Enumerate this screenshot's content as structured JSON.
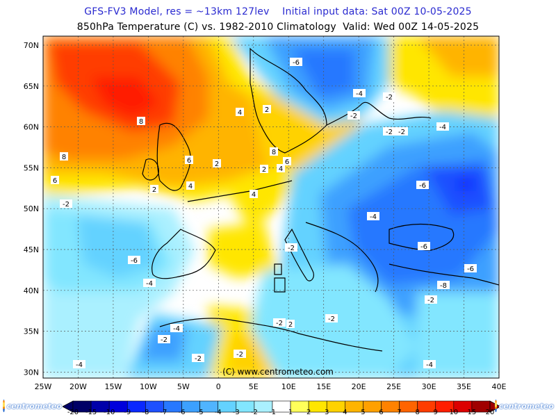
{
  "header": {
    "title_line1": "GFS-FV3 Model, res = ~13km 127lev    Initial input data: Sat 00Z 10-05-2025",
    "title_line2": "850hPa Temperature (C) vs. 1982-2010 Climatology  Valid: Wed 00Z 14-05-2025"
  },
  "map": {
    "lon_labels": [
      "25W",
      "20W",
      "15W",
      "10W",
      "5W",
      "0",
      "5E",
      "10E",
      "15E",
      "20E",
      "25E",
      "30E",
      "35E",
      "40E"
    ],
    "lat_labels": [
      "70N",
      "65N",
      "60N",
      "55N",
      "50N",
      "45N",
      "40N",
      "35N",
      "30N"
    ],
    "credit": "(C) www.centrometeo.com",
    "contour_labels": [
      "-6",
      "-4",
      "-2",
      "-2",
      "-4",
      "8",
      "8",
      "6",
      "4",
      "2",
      "8",
      "6",
      "4",
      "6",
      "4",
      "2",
      "-2",
      "-2",
      "-4",
      "-6",
      "-6",
      "-6",
      "-8",
      "-4",
      "-2",
      "-2",
      "-4",
      "-2",
      "-2",
      "-4",
      "-6",
      "-4",
      "-2",
      "2",
      "-2",
      "-2",
      "2",
      "4",
      "2",
      "-2"
    ],
    "colors": {
      "cold_extreme": "#000066",
      "cold_deep": "#1e3cff",
      "cold_mid": "#3ca0ff",
      "cold_light": "#64d2ff",
      "cold_pale": "#aaf0ff",
      "neutral": "#ffffff",
      "warm_light": "#ffe600",
      "warm_mid": "#ffb400",
      "warm_orange": "#ff8200",
      "warm_red": "#ff3c00",
      "warm_deep": "#dc0000"
    }
  },
  "colorbar": {
    "ticks": [
      "-20",
      "-15",
      "-10",
      "-9",
      "-8",
      "-7",
      "-6",
      "-5",
      "-4",
      "-3",
      "-2",
      "-1",
      "1",
      "2",
      "3",
      "4",
      "5",
      "6",
      "7",
      "8",
      "9",
      "10",
      "15",
      "20"
    ],
    "colors": [
      "#000066",
      "#0000aa",
      "#0000dc",
      "#0a28ff",
      "#1e50ff",
      "#2878ff",
      "#3ca0ff",
      "#50b4ff",
      "#64d2ff",
      "#82e6ff",
      "#aaf0ff",
      "#ffffff",
      "#ffff5a",
      "#ffe600",
      "#ffd200",
      "#ffb400",
      "#ffa000",
      "#ff8200",
      "#ff6400",
      "#ff3c00",
      "#ff1e00",
      "#dc0000",
      "#a00000"
    ]
  },
  "logos": {
    "left": "centrometeo",
    "right": "centrometeo"
  }
}
